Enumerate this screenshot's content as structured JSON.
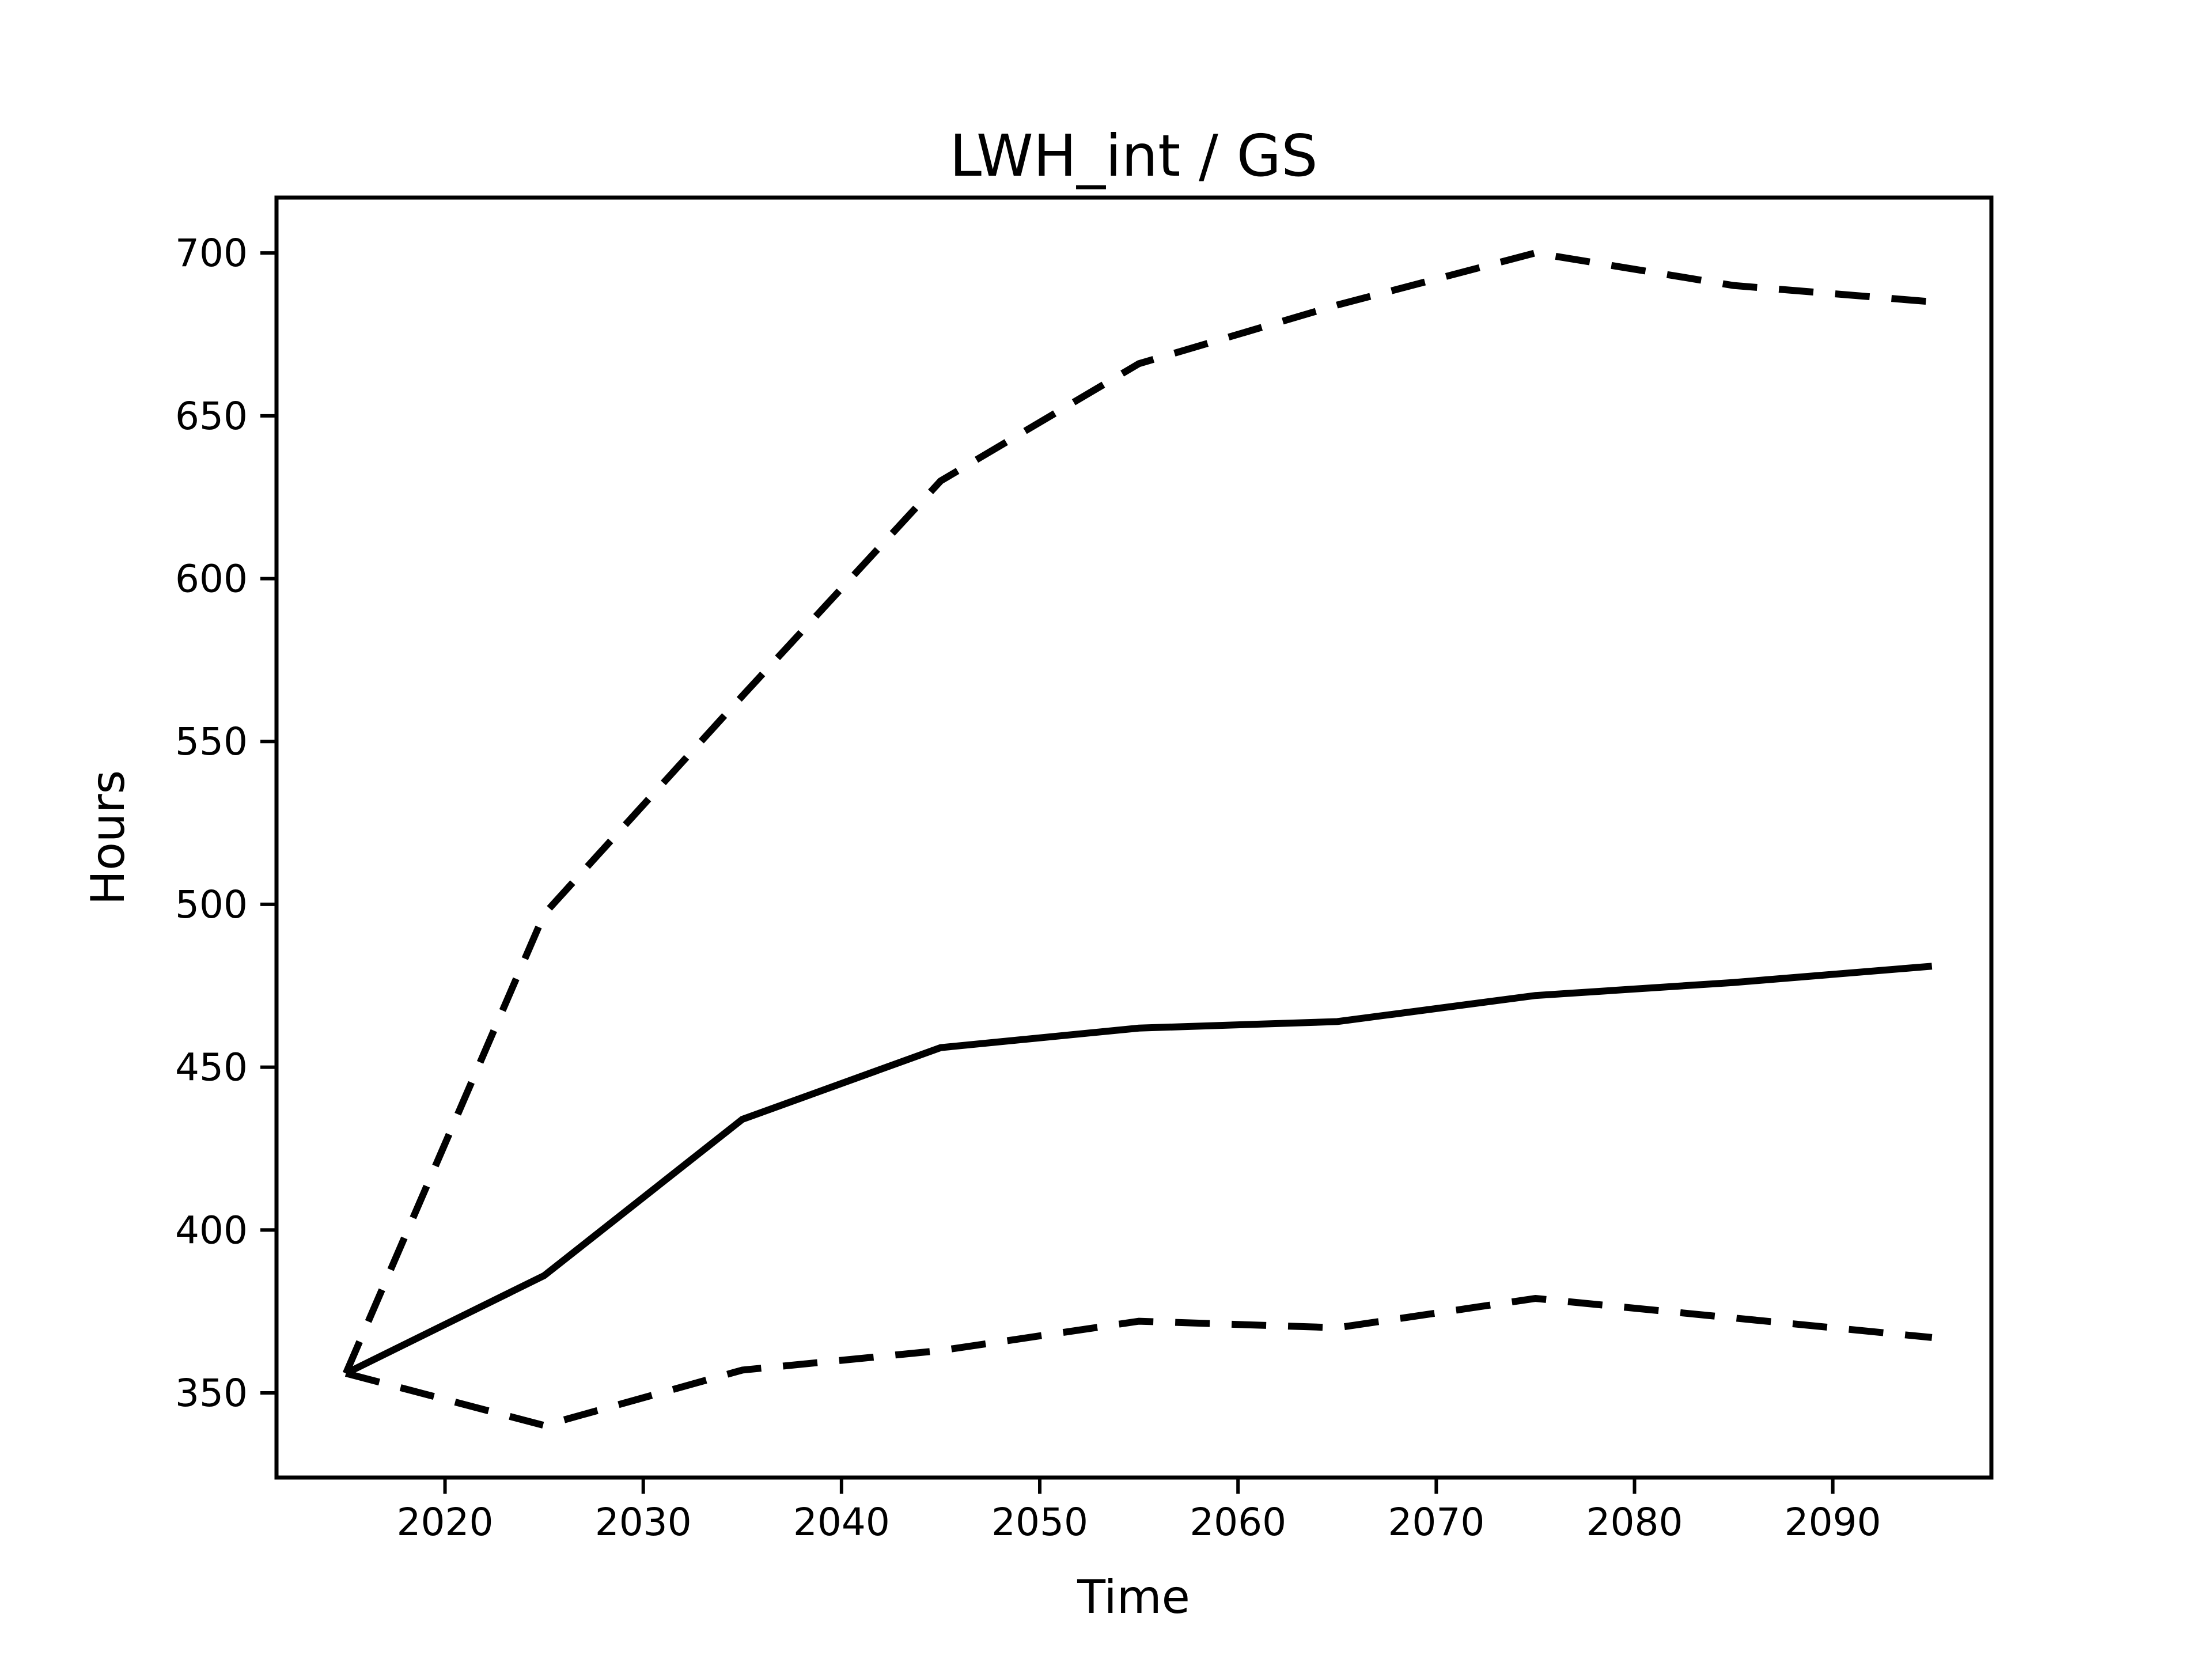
{
  "figure": {
    "background_color": "#ffffff",
    "line_color": "#000000"
  },
  "chart_data": {
    "type": "line",
    "title": "LWH_int / GS",
    "xlabel": "Time",
    "ylabel": "Hours",
    "grid": false,
    "legend": null,
    "x": [
      2015,
      2025,
      2035,
      2045,
      2055,
      2065,
      2075,
      2085,
      2095
    ],
    "series": [
      {
        "name": "upper-bound",
        "style": "dashed",
        "color": "#000000",
        "values": [
          356,
          497,
          564,
          630,
          666,
          684,
          700,
          690,
          685
        ]
      },
      {
        "name": "central",
        "style": "solid",
        "color": "#000000",
        "values": [
          356,
          386,
          434,
          456,
          462,
          464,
          472,
          476,
          481
        ]
      },
      {
        "name": "lower-bound",
        "style": "dashed",
        "color": "#000000",
        "values": [
          356,
          340,
          357,
          363,
          372,
          370,
          379,
          373,
          367
        ]
      }
    ],
    "xlim": [
      2011.5,
      2098
    ],
    "ylim": [
      324,
      717
    ],
    "x_ticks": [
      2020,
      2030,
      2040,
      2050,
      2060,
      2070,
      2080,
      2090
    ],
    "y_ticks": [
      350,
      400,
      450,
      500,
      550,
      600,
      650,
      700
    ]
  }
}
